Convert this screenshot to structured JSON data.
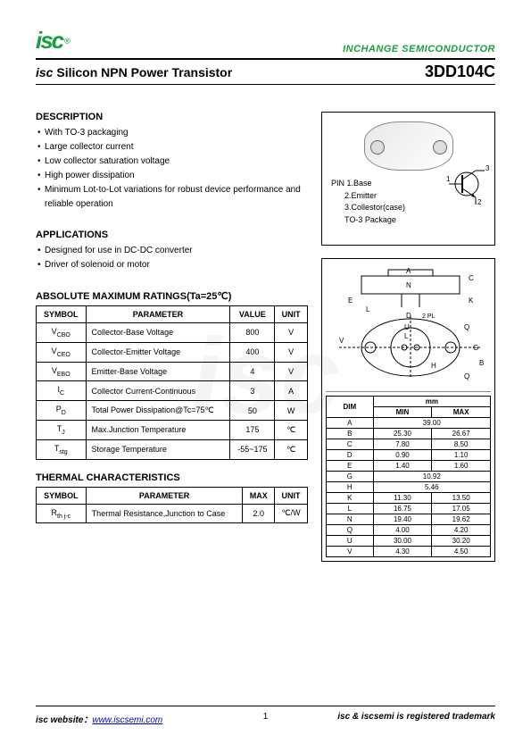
{
  "header": {
    "logo_text": "isc",
    "logo_reg": "®",
    "company": "INCHANGE SEMICONDUCTOR"
  },
  "title": {
    "prefix": "isc",
    "main": "Silicon NPN Power Transistor",
    "part": "3DD104C"
  },
  "description": {
    "heading": "DESCRIPTION",
    "items": [
      "With TO-3 packaging",
      "Large collector current",
      "Low collector saturation voltage",
      "High power dissipation",
      "Minimum Lot-to-Lot variations for robust device performance and reliable operation"
    ]
  },
  "applications": {
    "heading": "APPLICATIONS",
    "items": [
      "Designed for use in DC-DC converter",
      "Driver of solenoid or motor"
    ]
  },
  "ratings": {
    "heading": "ABSOLUTE MAXIMUM RATINGS(Ta=25℃)",
    "columns": [
      "SYMBOL",
      "PARAMETER",
      "VALUE",
      "UNIT"
    ],
    "rows": [
      {
        "sym": "V",
        "sub": "CBO",
        "param": "Collector-Base Voltage",
        "value": "800",
        "unit": "V"
      },
      {
        "sym": "V",
        "sub": "CEO",
        "param": "Collector-Emitter Voltage",
        "value": "400",
        "unit": "V"
      },
      {
        "sym": "V",
        "sub": "EBO",
        "param": "Emitter-Base Voltage",
        "value": "4",
        "unit": "V"
      },
      {
        "sym": "I",
        "sub": "C",
        "param": "Collector Current-Continuous",
        "value": "3",
        "unit": "A"
      },
      {
        "sym": "P",
        "sub": "D",
        "param": "Total Power Dissipation@Tc=75℃",
        "value": "50",
        "unit": "W"
      },
      {
        "sym": "T",
        "sub": "J",
        "param": "Max.Junction Temperature",
        "value": "175",
        "unit": "℃"
      },
      {
        "sym": "T",
        "sub": "stg",
        "param": "Storage Temperature",
        "value": "-55~175",
        "unit": "℃"
      }
    ]
  },
  "thermal": {
    "heading": "THERMAL CHARACTERISTICS",
    "columns": [
      "SYMBOL",
      "PARAMETER",
      "MAX",
      "UNIT"
    ],
    "rows": [
      {
        "sym": "R",
        "sub": "th j-c",
        "param": "Thermal Resistance,Junction to Case",
        "value": "2.0",
        "unit": "℃/W"
      }
    ]
  },
  "package_box": {
    "pin_label": "PIN",
    "pins": [
      "1.Base",
      "2.Emitter",
      "3.Collestor(case)"
    ],
    "pkg_name": "TO-3  Package",
    "symbol_pins": {
      "1": "1",
      "2": "2",
      "3": "3"
    }
  },
  "dimensions": {
    "header": "mm",
    "cols": [
      "DIM",
      "MIN",
      "MAX"
    ],
    "rows": [
      {
        "dim": "A",
        "min": "39.00",
        "max": ""
      },
      {
        "dim": "B",
        "min": "25.30",
        "max": "26.67"
      },
      {
        "dim": "C",
        "min": "7.80",
        "max": "8.50"
      },
      {
        "dim": "D",
        "min": "0.90",
        "max": "1.10"
      },
      {
        "dim": "E",
        "min": "1.40",
        "max": "1.60"
      },
      {
        "dim": "G",
        "min": "10.92",
        "max": ""
      },
      {
        "dim": "H",
        "min": "5.46",
        "max": ""
      },
      {
        "dim": "K",
        "min": "11.30",
        "max": "13.50"
      },
      {
        "dim": "L",
        "min": "16.75",
        "max": "17.05"
      },
      {
        "dim": "N",
        "min": "19.40",
        "max": "19.62"
      },
      {
        "dim": "Q",
        "min": "4.00",
        "max": "4.20"
      },
      {
        "dim": "U",
        "min": "30.00",
        "max": "30.20"
      },
      {
        "dim": "V",
        "min": "4.30",
        "max": "4.50"
      }
    ],
    "drawing_labels": [
      "A",
      "N",
      "C",
      "E",
      "K",
      "L",
      "D",
      "2 PL",
      "U",
      "L",
      "Q",
      "V",
      "G",
      "B",
      "H",
      "Q"
    ]
  },
  "footer": {
    "website_label": "isc website：",
    "website_url": "www.iscsemi.com",
    "page": "1",
    "trademark": "isc & iscsemi is registered trademark"
  },
  "colors": {
    "brand_green": "#1a9e3e",
    "link_blue": "#0000cc",
    "text": "#000000",
    "bg": "#ffffff",
    "border": "#000000"
  }
}
